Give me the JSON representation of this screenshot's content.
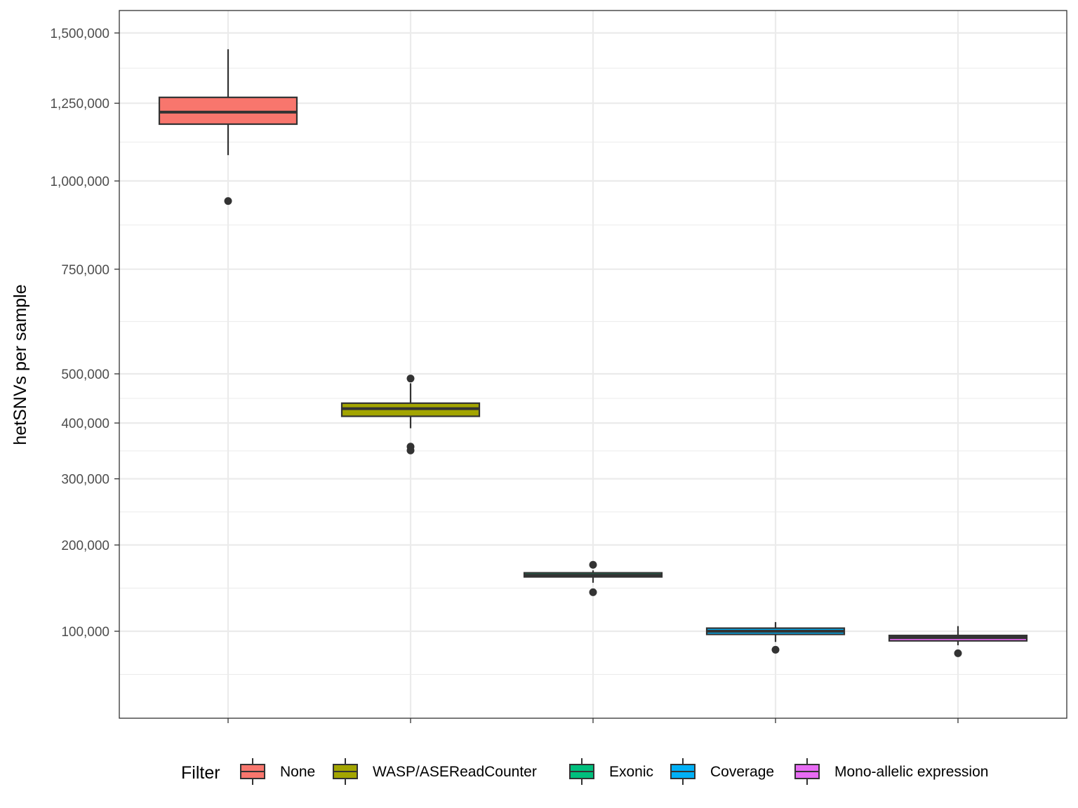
{
  "chart_data": {
    "type": "boxplot",
    "title": "",
    "xlabel": "",
    "ylabel": "hetSNVs per sample",
    "y_scale": "sqrt",
    "ylim": [
      75000,
      1550000
    ],
    "grid": true,
    "legend": {
      "title": "Filter",
      "position": "bottom"
    },
    "y_ticks": [
      {
        "value": 100000,
        "label": "100,000"
      },
      {
        "value": 200000,
        "label": "200,000"
      },
      {
        "value": 300000,
        "label": "300,000"
      },
      {
        "value": 400000,
        "label": "400,000"
      },
      {
        "value": 500000,
        "label": "500,000"
      },
      {
        "value": 750000,
        "label": "750,000"
      },
      {
        "value": 1000000,
        "label": "1,000,000"
      },
      {
        "value": 1250000,
        "label": "1,250,000"
      },
      {
        "value": 1500000,
        "label": "1,500,000"
      }
    ],
    "series": [
      {
        "name": "None",
        "color": "#F8766D",
        "whisker_low": 1080000,
        "q1": 1180000,
        "median": 1220000,
        "q3": 1270000,
        "whisker_high": 1440000,
        "outliers": [
          940000
        ]
      },
      {
        "name": "WASP/ASEReadCounter",
        "color": "#A3A500",
        "whisker_low": 390000,
        "q1": 413000,
        "median": 428000,
        "q3": 439000,
        "whisker_high": 480000,
        "outliers": [
          490000,
          356000,
          349000
        ]
      },
      {
        "name": "Exonic",
        "color": "#00BF7D",
        "whisker_low": 152000,
        "q1": 159000,
        "median": 161000,
        "q3": 164000,
        "whisker_high": 167000,
        "outliers": [
          174000,
          141000
        ]
      },
      {
        "name": "Coverage",
        "color": "#00B0F6",
        "whisker_low": 90000,
        "q1": 97000,
        "median": 100000,
        "q3": 103000,
        "whisker_high": 109000,
        "outliers": [
          83000
        ]
      },
      {
        "name": "Mono-allelic expression",
        "color": "#E76BF3",
        "whisker_low": 87000,
        "q1": 91000,
        "median": 94000,
        "q3": 96000,
        "whisker_high": 105000,
        "outliers": [
          80000
        ]
      }
    ]
  }
}
